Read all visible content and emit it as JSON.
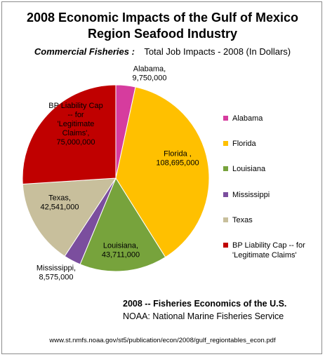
{
  "chart_data": {
    "type": "pie",
    "title": "2008 Economic Impacts of the Gulf of Mexico Region Seafood Industry",
    "title_lines": [
      "2008 Economic Impacts of the Gulf of Mexico",
      "Region Seafood Industry"
    ],
    "subtitle_a": "Commercial Fisheries :",
    "subtitle_b": "Total Job Impacts - 2008  (In Dollars)",
    "legend_position": "right",
    "slices": [
      {
        "name": "Alabama",
        "value": 9750000,
        "color": "#d63c9e",
        "label": [
          "Alabama,",
          "9,750,000"
        ]
      },
      {
        "name": "Florida",
        "value": 108695000,
        "color": "#ffc000",
        "label": [
          "Florida ,",
          "108,695,000"
        ]
      },
      {
        "name": "Louisiana",
        "value": 43711000,
        "color": "#77a33c",
        "label": [
          "Louisiana,",
          "43,711,000"
        ]
      },
      {
        "name": "Mississippi",
        "value": 8575000,
        "color": "#7b4e9e",
        "label": [
          "Mississippi,",
          "8,575,000"
        ]
      },
      {
        "name": "Texas",
        "value": 42541000,
        "color": "#c8bf9c",
        "label": [
          "Texas,",
          "42,541,000"
        ]
      },
      {
        "name": "BP Liability Cap -- for 'Legitimate Claims'",
        "value": 75000000,
        "color": "#c00000",
        "label": [
          "BP Liability Cap",
          "-- for",
          "'Legitimate",
          "Claims',",
          "75,000,000"
        ]
      }
    ],
    "legend": [
      [
        "Alabama"
      ],
      [
        "Florida"
      ],
      [
        "Louisiana"
      ],
      [
        "Mississippi"
      ],
      [
        "Texas"
      ],
      [
        "BP Liability Cap -- for",
        "'Legitimate Claims'"
      ]
    ]
  },
  "source": {
    "line1": "2008 -- Fisheries Economics of the U.S.",
    "line2": "NOAA: National Marine Fisheries Service",
    "url": "www.st.nmfs.noaa.gov/st5/publication/econ/2008/gulf_regiontables_econ.pdf"
  }
}
